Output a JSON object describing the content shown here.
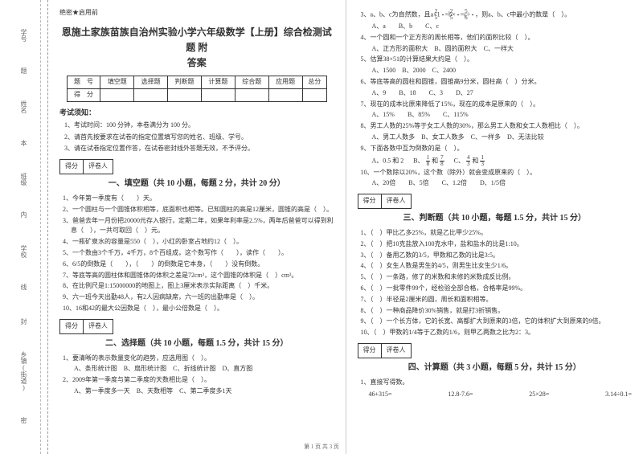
{
  "gutter": {
    "labels": [
      "学号",
      "姓名",
      "班级",
      "学校",
      "乡镇(街道)"
    ],
    "cuts": [
      "题",
      "本",
      "内",
      "线",
      "封",
      "密"
    ]
  },
  "confidential": "绝密★启用前",
  "title_line1": "恩施土家族苗族自治州实验小学六年级数学【上册】综合检测试题 附",
  "title_line2": "答案",
  "score_table": {
    "headers": [
      "题　号",
      "填空题",
      "选择题",
      "判断题",
      "计算题",
      "综合题",
      "应用题",
      "总分"
    ],
    "row2": "得　分"
  },
  "notice_header": "考试须知：",
  "notices": [
    "1、考试时间：100 分钟，本卷满分为 100 分。",
    "2、请首先按要求在试卷的指定位置填写您的姓名、班级、学号。",
    "3、请在试卷指定位置作答，在试卷密封线外答题无效，不予评分。"
  ],
  "sections": {
    "fill": {
      "title": "一、填空题（共 10 小题，每题 2 分，共计 20 分）",
      "grader_l": "得分",
      "grader_r": "评卷人",
      "q": [
        "1、今年第一季度有（　　）天。",
        "2、一个圆柱与一个圆锥体积相等，底面积也相等。已知圆柱的高是12厘米，圆锥的高是（　）。",
        "3、爸爸去年一月份把20000元存入银行，定期二年，如果年利率是2.5%，两年后爸爸可以得到利息（　），一共可取回（　）元。",
        "4、一瓶矿泉水的容量是550（　），小红的卧室占地约12（　）。",
        "5、一个数由3个千万，4千万，8个百组成，这个数写作（　　），读作（　　）。",
        "6、6/5的倒数是（　　），（　　）的倒数是它本身，（　　）没有倒数。",
        "7、等底等高的圆柱体和圆锥体的体积之差是72cm³，这个圆锥的体积是（　）cm³。",
        "8、在比例尺是1:15000000的地图上，图上3厘米表示实际距离（　）千米。",
        "9、六一班今天出勤48人，有2人因病缺席，六一班的出勤率是（　）。",
        "10、16和42的最大公因数是（　），最小公倍数是（　）。"
      ]
    },
    "choice": {
      "title": "二、选择题（共 10 小题，每题 1.5 分，共计 15 分）",
      "grader_l": "得分",
      "grader_r": "评卷人",
      "q": [
        "1、要清晰的表示数量变化的趋势，应选用图（　）。",
        "A、条形统计图　B、扇形统计图　C、折线统计图　D、直方图",
        "2、2009年第一季度与第二季度的天数相比是（　）。",
        "A、第一季度多一天　B、天数相等　C、第二季度多1天"
      ],
      "q3": "3、a、b、c为自然数，且a×1",
      "q3_mid": "=b×",
      "q3_mid2": "=c÷",
      "q3_tail": "，则a、b、c中最小的数是（　）。",
      "f1n": "2",
      "f1d": "5",
      "f2n": "2",
      "f2d": "5",
      "f3n": "5",
      "f3d": "6",
      "opts3": "A、a　　B、b　　C、c",
      "q4": "4、一个圆和一个正方形的周长相等，他们的面积比较（　）。",
      "opts4": "A、正方形的面积大　B、圆的面积大　C、一样大",
      "q5": "5、估算38×51的计算结果大约是（　）。",
      "opts5": "A、1500　B、2000　C、2400",
      "q6": "6、等底等高的圆柱和圆锥，圆锥高9分米，圆柱高（　）分米。",
      "opts6": "A、9　　B、18　　C、3　　D、27",
      "q7": "7、现在的成本比原来降低了15%，现在的成本是原来的（　）。",
      "opts7": "A、15%　　B、85%　　C、115%",
      "q8": "8、男工人数的25%等于女工人数的30%，那么男工人数和女工人数相比（　）。",
      "opts8": "A、男工人数多　B、女工人数多　C、一样多　D、无法比较",
      "q9": "9、下面各数中互为倒数的是（　）。",
      "opts9a": "A、0.5 和 2",
      "opts9b_pre": "B、",
      "opts9b_n1": "1",
      "opts9b_d1": "8",
      "opts9b_mid": " 和 ",
      "opts9b_n2": "7",
      "opts9b_d2": "8",
      "opts9c_pre": "C、",
      "opts9c_n1": "4",
      "opts9c_d1": "3",
      "opts9c_mid": " 和 ",
      "opts9c_n2": "1",
      "opts9c_d2": "3",
      "q10": "10、一个数除以20%，这个数（除外）就会变成原来的（　）。",
      "opts10": "A、20倍　　B、5倍　　C、1.2倍　　D、1/5倍"
    },
    "judge": {
      "title": "三、判断题（共 10 小题，每题 1.5 分，共计 15 分）",
      "grader_l": "得分",
      "grader_r": "评卷人",
      "q": [
        "1、（　）甲比乙多25%，就是乙比甲少25%。",
        "2、（　）把10克盐放入100克水中，盐和盐水的比是1:10。",
        "3、（　）备用乙数的3/5，甲数和乙数的比是3:5。",
        "4、（　）女生人数是男生的4/5，则男生比女生少1/6。",
        "5、（　）一条路，修了的米数和未修的米数成反比例。",
        "6、（　）一批零件99个，经检验全部合格，合格率是99%。",
        "7、（　）半径是2厘米的圆，周长和面积相等。",
        "8、（　）一种商品降价30%销售，就是打3折销售。",
        "9、（　）一个长方体，它的长宽、高都扩大到原来的3倍，它的体积扩大到原来的9倍。",
        "10、（　）甲数的1/4等于乙数的1/6，则甲乙两数之比为2：3。"
      ]
    },
    "calc": {
      "title": "四、计算题（共 3 小题，每题 5 分，共计 15 分）",
      "grader_l": "得分",
      "grader_r": "评卷人",
      "lead": "1、直接写得数。",
      "row": [
        "46+315=",
        "12.8-7.6=",
        "25×28=",
        "3.14÷0.1="
      ]
    }
  },
  "footer": "第 1 页 共 3 页"
}
